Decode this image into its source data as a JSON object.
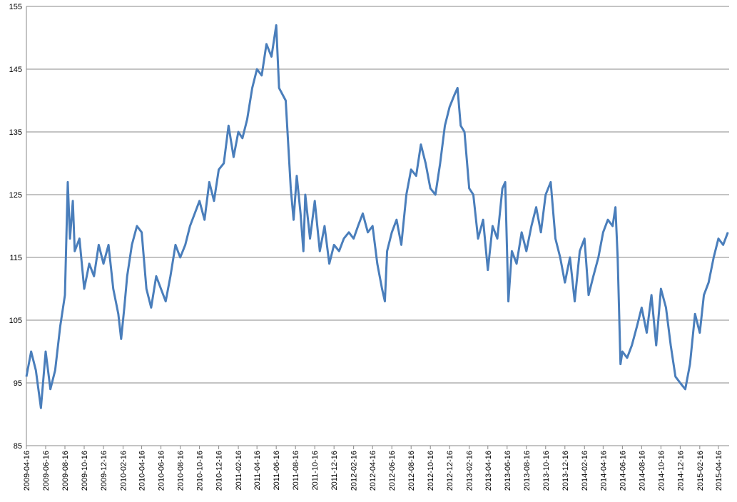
{
  "chart_data": {
    "type": "line",
    "x": [
      "2009-04-16",
      "2009-05-01",
      "2009-05-16",
      "2009-06-01",
      "2009-06-16",
      "2009-07-01",
      "2009-07-16",
      "2009-08-01",
      "2009-08-16",
      "2009-08-25",
      "2009-09-01",
      "2009-09-10",
      "2009-09-16",
      "2009-10-01",
      "2009-10-16",
      "2009-11-01",
      "2009-11-16",
      "2009-12-01",
      "2009-12-16",
      "2010-01-01",
      "2010-01-16",
      "2010-02-01",
      "2010-02-10",
      "2010-02-20",
      "2010-03-01",
      "2010-03-16",
      "2010-04-01",
      "2010-04-16",
      "2010-05-01",
      "2010-05-16",
      "2010-06-01",
      "2010-06-16",
      "2010-07-01",
      "2010-07-16",
      "2010-08-01",
      "2010-08-16",
      "2010-09-01",
      "2010-09-16",
      "2010-10-01",
      "2010-10-16",
      "2010-11-01",
      "2010-11-16",
      "2010-12-01",
      "2010-12-16",
      "2011-01-01",
      "2011-01-16",
      "2011-02-01",
      "2011-02-16",
      "2011-03-01",
      "2011-03-16",
      "2011-04-01",
      "2011-04-16",
      "2011-05-01",
      "2011-05-16",
      "2011-06-01",
      "2011-06-16",
      "2011-06-25",
      "2011-07-16",
      "2011-08-01",
      "2011-08-10",
      "2011-08-20",
      "2011-09-01",
      "2011-09-10",
      "2011-09-16",
      "2011-10-01",
      "2011-10-16",
      "2011-11-01",
      "2011-11-16",
      "2011-12-01",
      "2011-12-16",
      "2012-01-01",
      "2012-01-16",
      "2012-02-01",
      "2012-02-16",
      "2012-03-01",
      "2012-03-16",
      "2012-04-01",
      "2012-04-16",
      "2012-05-01",
      "2012-05-16",
      "2012-05-25",
      "2012-06-01",
      "2012-06-16",
      "2012-07-01",
      "2012-07-16",
      "2012-08-01",
      "2012-08-16",
      "2012-09-01",
      "2012-09-16",
      "2012-10-01",
      "2012-10-16",
      "2012-11-01",
      "2012-11-16",
      "2012-12-01",
      "2012-12-16",
      "2013-01-01",
      "2013-01-10",
      "2013-01-20",
      "2013-02-01",
      "2013-02-16",
      "2013-03-01",
      "2013-03-16",
      "2013-04-01",
      "2013-04-16",
      "2013-05-01",
      "2013-05-16",
      "2013-06-01",
      "2013-06-10",
      "2013-06-20",
      "2013-07-01",
      "2013-07-16",
      "2013-08-01",
      "2013-08-16",
      "2013-09-01",
      "2013-09-16",
      "2013-10-01",
      "2013-10-16",
      "2013-11-01",
      "2013-11-16",
      "2013-12-01",
      "2013-12-16",
      "2014-01-01",
      "2014-01-16",
      "2014-02-01",
      "2014-02-16",
      "2014-03-01",
      "2014-03-16",
      "2014-04-01",
      "2014-04-16",
      "2014-05-01",
      "2014-05-16",
      "2014-05-25",
      "2014-06-01",
      "2014-06-10",
      "2014-06-16",
      "2014-07-01",
      "2014-07-16",
      "2014-08-01",
      "2014-08-16",
      "2014-09-01",
      "2014-09-16",
      "2014-10-01",
      "2014-10-16",
      "2014-11-01",
      "2014-11-16",
      "2014-12-01",
      "2014-12-16",
      "2015-01-01",
      "2015-01-16",
      "2015-02-01",
      "2015-02-16",
      "2015-03-01",
      "2015-03-16",
      "2015-04-01",
      "2015-04-16",
      "2015-05-01",
      "2015-05-16"
    ],
    "series": [
      {
        "color": "#4a7ebb",
        "values": [
          96,
          100,
          97,
          91,
          100,
          94,
          97,
          104,
          109,
          127,
          118,
          124,
          116,
          118,
          110,
          114,
          112,
          117,
          114,
          117,
          110,
          106,
          102,
          107,
          112,
          117,
          120,
          119,
          110,
          107,
          112,
          110,
          108,
          112,
          117,
          115,
          117,
          120,
          122,
          124,
          121,
          127,
          124,
          129,
          130,
          136,
          131,
          135,
          134,
          137,
          142,
          145,
          144,
          149,
          147,
          152,
          142,
          140,
          126,
          121,
          128,
          122,
          116,
          125,
          118,
          124,
          116,
          120,
          114,
          117,
          116,
          118,
          119,
          118,
          120,
          122,
          119,
          120,
          114,
          110,
          108,
          116,
          119,
          121,
          117,
          125,
          129,
          128,
          133,
          130,
          126,
          125,
          130,
          136,
          139,
          141,
          142,
          136,
          135,
          126,
          125,
          118,
          121,
          113,
          120,
          118,
          126,
          127,
          108,
          116,
          114,
          119,
          116,
          120,
          123,
          119,
          125,
          127,
          118,
          115,
          111,
          115,
          108,
          116,
          118,
          109,
          112,
          115,
          119,
          121,
          120,
          123,
          115,
          98,
          100,
          99,
          101,
          104,
          107,
          103,
          109,
          101,
          110,
          107,
          101,
          96,
          95,
          94,
          98,
          106,
          103,
          109,
          111,
          115,
          118,
          117,
          119
        ]
      }
    ],
    "xlim": [
      "2009-04-16",
      "2015-05-20"
    ],
    "xticks": [
      "2009-04-16",
      "2009-06-16",
      "2009-08-16",
      "2009-10-16",
      "2009-12-16",
      "2010-02-16",
      "2010-04-16",
      "2010-06-16",
      "2010-08-16",
      "2010-10-16",
      "2010-12-16",
      "2011-02-16",
      "2011-04-16",
      "2011-06-16",
      "2011-08-16",
      "2011-10-16",
      "2011-12-16",
      "2012-02-16",
      "2012-04-16",
      "2012-06-16",
      "2012-08-16",
      "2012-10-16",
      "2012-12-16",
      "2013-02-16",
      "2013-04-16",
      "2013-06-16",
      "2013-08-16",
      "2013-10-16",
      "2013-12-16",
      "2014-02-16",
      "2014-04-16",
      "2014-06-16",
      "2014-08-16",
      "2014-10-16",
      "2014-12-16",
      "2015-02-16",
      "2015-04-16"
    ],
    "ylim": [
      85,
      155
    ],
    "yticks": [
      85,
      95,
      105,
      115,
      125,
      135,
      145,
      155
    ],
    "grid": true
  }
}
